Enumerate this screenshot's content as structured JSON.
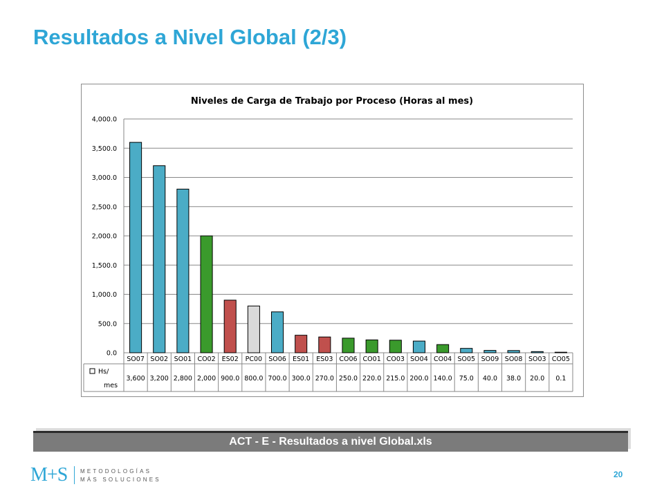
{
  "slide": {
    "title": "Resultados a Nivel Global (2/3)",
    "file_banner": "ACT - E - Resultados a nivel Global.xls",
    "page_number": "20"
  },
  "logo": {
    "mark": "M+S",
    "line1": "METODOLOGÍAS",
    "line2": "MÁS SOLUCIONES"
  },
  "colors": {
    "title": "#2ea6d6",
    "blue": "#4bacc6",
    "green": "#3a9a2c",
    "red": "#c0504d",
    "gray": "#d9d9d9",
    "banner": "#7b7b7b"
  },
  "chart_data": {
    "type": "bar",
    "title": "Niveles de Carga de Trabajo por Proceso (Horas al mes)",
    "categories": [
      "SO07",
      "SO02",
      "SO01",
      "CO02",
      "ES02",
      "PC00",
      "SO06",
      "ES01",
      "ES03",
      "CO06",
      "CO01",
      "CO03",
      "SO04",
      "CO04",
      "SO05",
      "SO09",
      "SO08",
      "SO03",
      "CO05"
    ],
    "series": [
      {
        "name": "Hs/ mes",
        "values": [
          3600,
          3200,
          2800,
          2000,
          900,
          800,
          700,
          300,
          270,
          250,
          220,
          215,
          200,
          140,
          75,
          40,
          38,
          20,
          0.1
        ],
        "value_labels": [
          "3,600",
          "3,200",
          "2,800",
          "2,000",
          "900.0",
          "800.0",
          "700.0",
          "300.0",
          "270.0",
          "250.0",
          "220.0",
          "215.0",
          "200.0",
          "140.0",
          "75.0",
          "40.0",
          "38.0",
          "20.0",
          "0.1"
        ],
        "bar_colors": [
          "blue",
          "blue",
          "blue",
          "green",
          "red",
          "gray",
          "blue",
          "red",
          "red",
          "green",
          "green",
          "green",
          "blue",
          "green",
          "blue",
          "blue",
          "blue",
          "blue",
          "green"
        ]
      }
    ],
    "y_ticks": [
      "0.0",
      "500.0",
      "1,000.0",
      "1,500.0",
      "2,000.0",
      "2,500.0",
      "3,000.0",
      "3,500.0",
      "4,000.0"
    ],
    "ylim": [
      0,
      4000
    ],
    "y_step": 500,
    "grid": true,
    "legend": "data-table-left"
  }
}
